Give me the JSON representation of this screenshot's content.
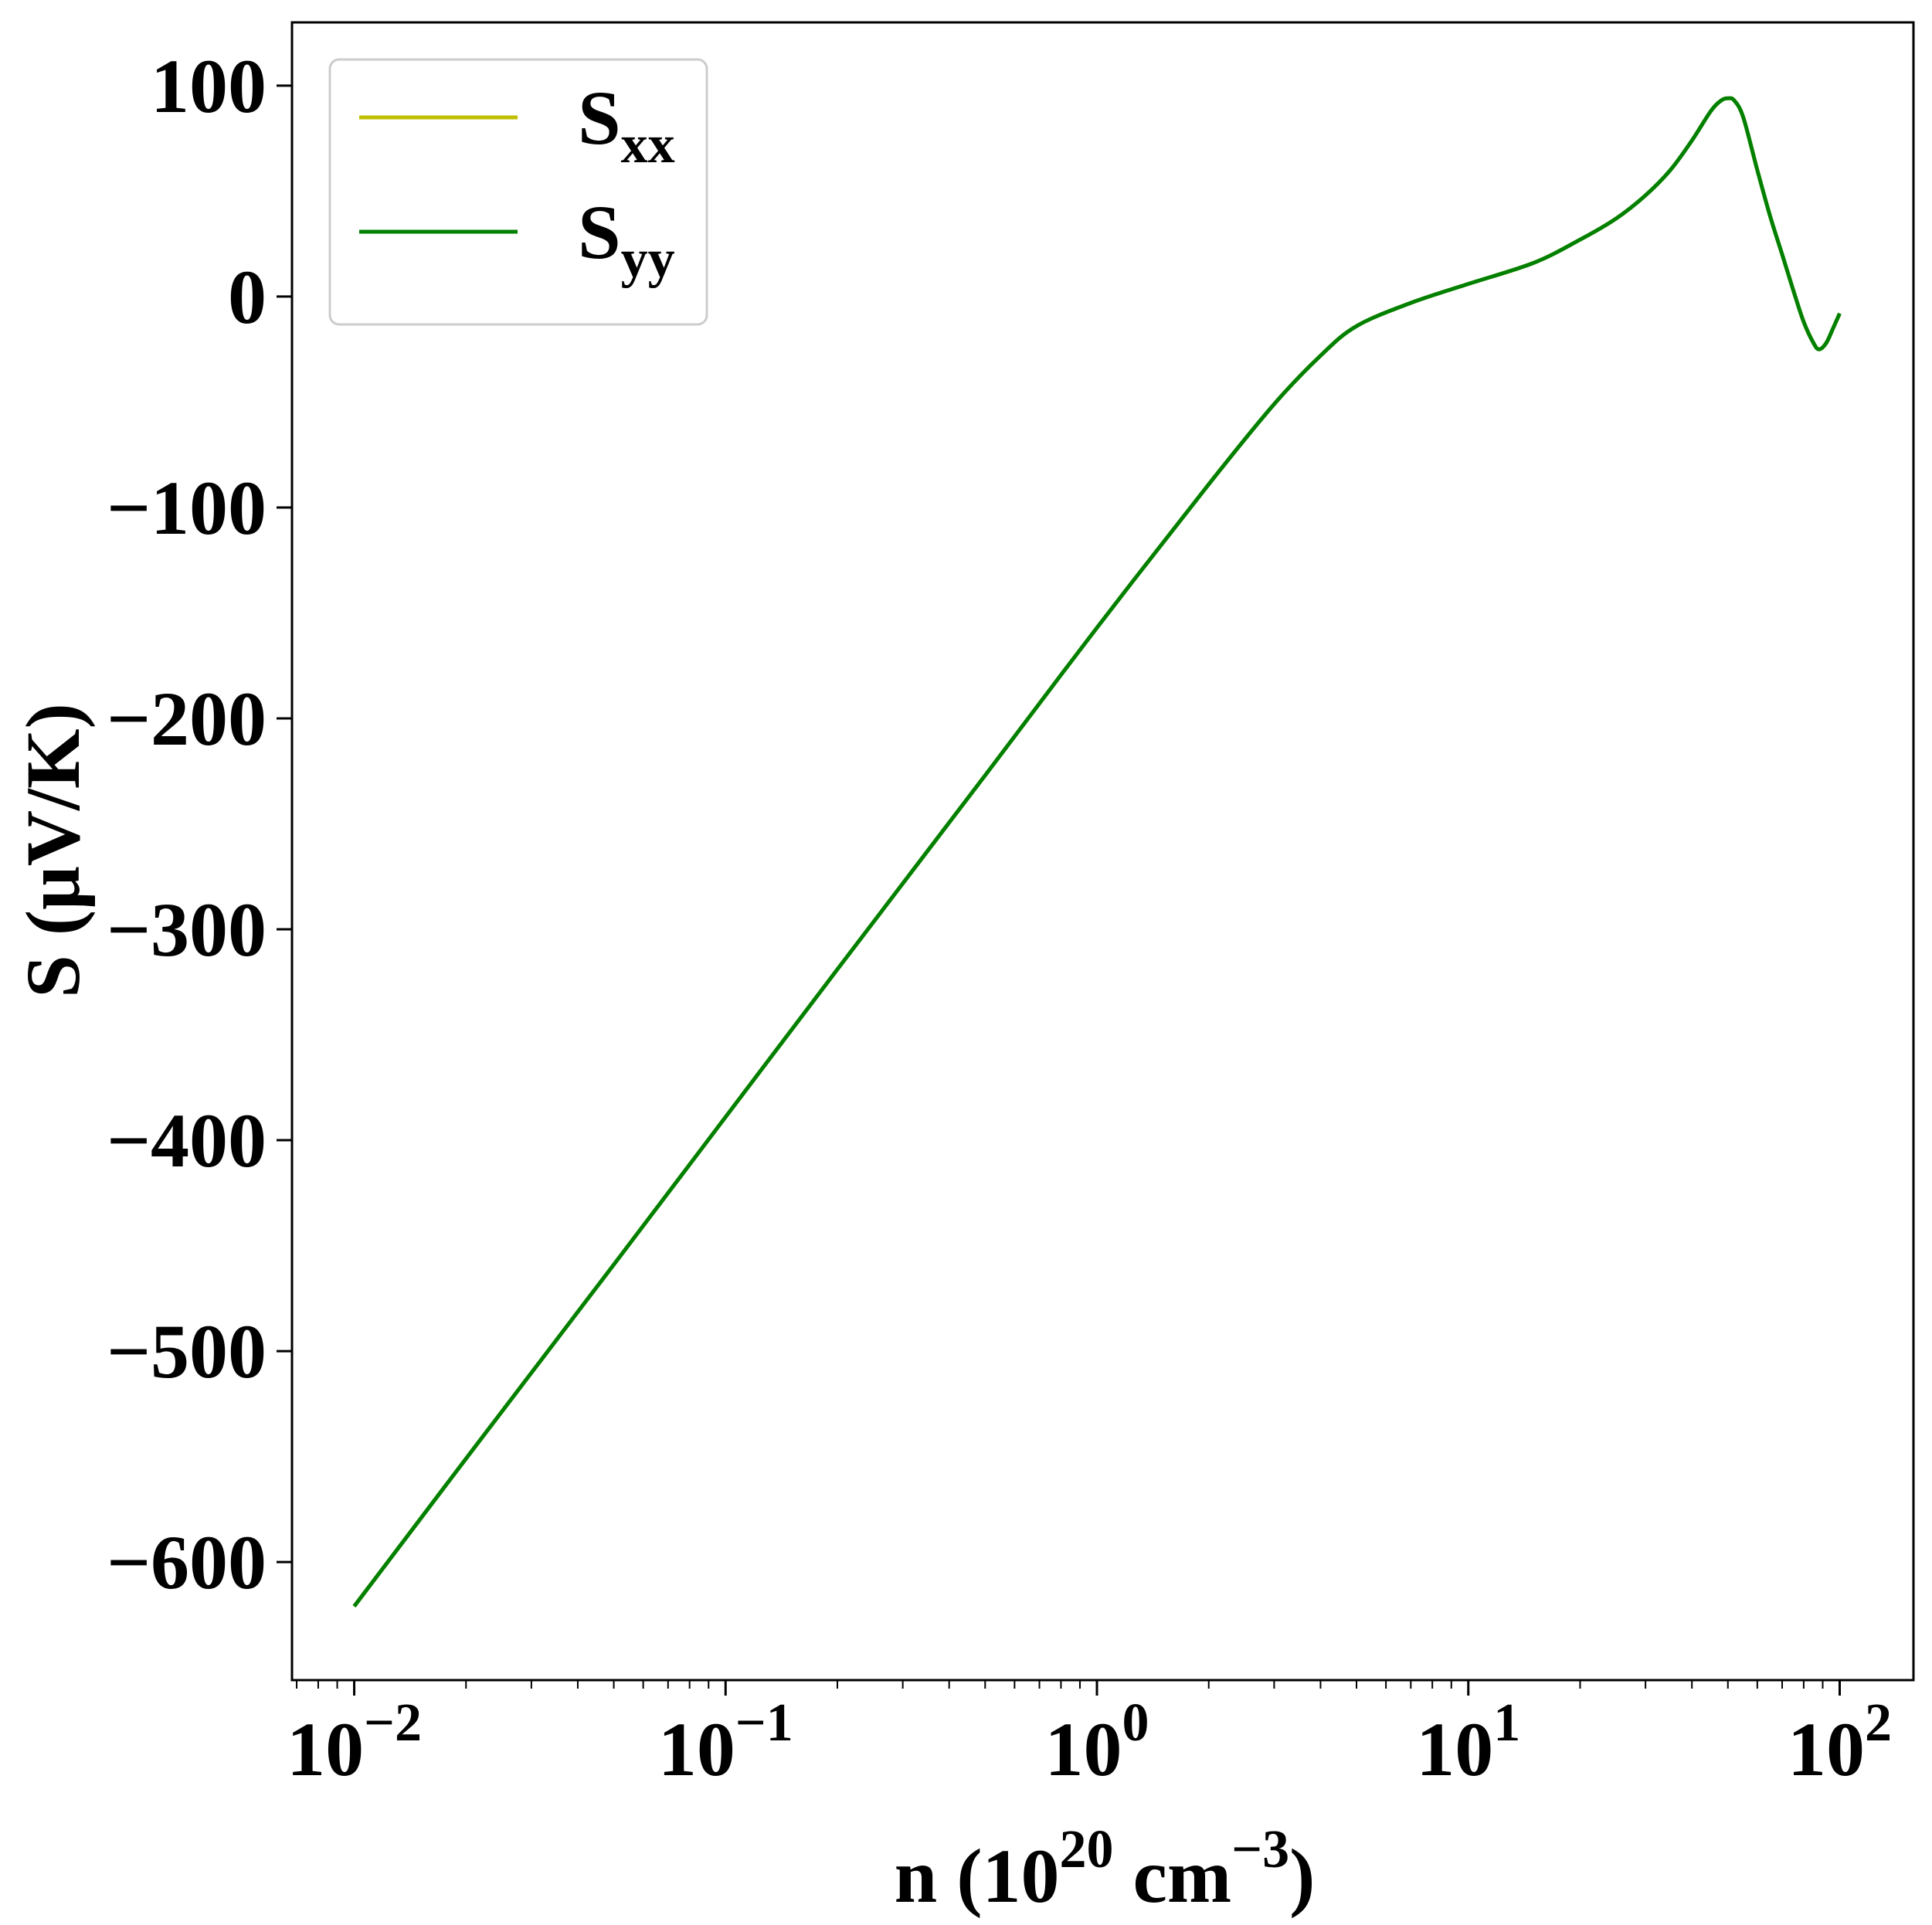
{
  "chart_data": {
    "type": "line",
    "xlabel": {
      "base": "n (10",
      "sup1": "20",
      "mid": " cm",
      "sup2": "−3",
      "end": ")"
    },
    "ylabel": "S (μV/K)",
    "x_scale": "log",
    "xlim": [
      0.0068,
      158
    ],
    "ylim": [
      -656,
      130
    ],
    "x_ticks": [
      {
        "value": 0.01,
        "base": "10",
        "exp": "−2"
      },
      {
        "value": 0.1,
        "base": "10",
        "exp": "−1"
      },
      {
        "value": 1,
        "base": "10",
        "exp": "0"
      },
      {
        "value": 10,
        "base": "10",
        "exp": "1"
      },
      {
        "value": 100,
        "base": "10",
        "exp": "2"
      }
    ],
    "y_ticks": [
      {
        "value": 100,
        "label": "100"
      },
      {
        "value": 0,
        "label": "0"
      },
      {
        "value": -100,
        "label": "−100"
      },
      {
        "value": -200,
        "label": "−200"
      },
      {
        "value": -300,
        "label": "−300"
      },
      {
        "value": -400,
        "label": "−400"
      },
      {
        "value": -500,
        "label": "−500"
      },
      {
        "value": -600,
        "label": "−600"
      }
    ],
    "grid": false,
    "legend_position": "top-left",
    "legend": [
      {
        "main": "S",
        "sub": "xx",
        "color": "#bfbf00"
      },
      {
        "main": "S",
        "sub": "yy",
        "color": "#008000"
      }
    ],
    "series": [
      {
        "name": "S_xx",
        "color": "#bfbf00",
        "x": [
          0.01,
          0.02,
          0.05,
          0.1,
          0.2,
          0.5,
          1,
          2,
          3,
          4,
          5,
          7,
          10,
          15,
          20,
          25,
          30,
          35,
          40,
          45,
          48,
          50,
          52,
          55,
          60,
          65,
          70,
          75,
          80,
          85,
          88,
          92,
          96,
          100
        ],
        "y": [
          -621,
          -551,
          -459,
          -389,
          -319,
          -227,
          -157,
          -89,
          -51,
          -28,
          -14,
          -3,
          6,
          16,
          27,
          37,
          48,
          60,
          74,
          88,
          93,
          94,
          93,
          85,
          60,
          38,
          20,
          3,
          -12,
          -22,
          -25,
          -22,
          -15,
          -8
        ]
      },
      {
        "name": "S_yy",
        "color": "#008000",
        "x": [
          0.01,
          0.02,
          0.05,
          0.1,
          0.2,
          0.5,
          1,
          2,
          3,
          4,
          5,
          7,
          10,
          15,
          20,
          25,
          30,
          35,
          40,
          45,
          48,
          50,
          52,
          55,
          60,
          65,
          70,
          75,
          80,
          85,
          88,
          92,
          96,
          100
        ],
        "y": [
          -621,
          -551,
          -459,
          -389,
          -319,
          -227,
          -157,
          -89,
          -51,
          -28,
          -14,
          -3,
          6,
          16,
          27,
          37,
          48,
          60,
          74,
          88,
          93,
          94,
          93,
          85,
          60,
          38,
          20,
          3,
          -12,
          -22,
          -25,
          -22,
          -15,
          -8
        ]
      }
    ]
  }
}
